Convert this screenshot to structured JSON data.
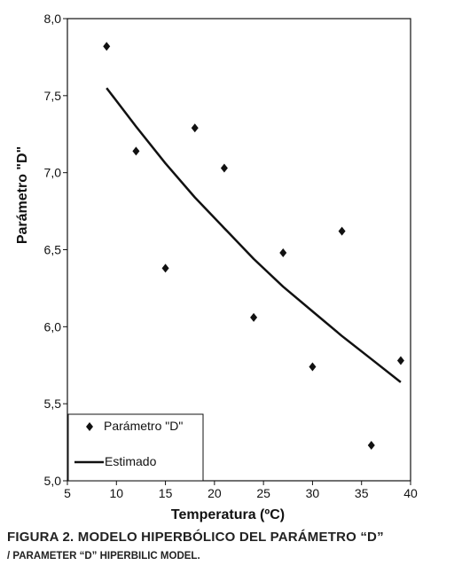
{
  "chart_data": {
    "type": "scatter",
    "xlabel": "Temperatura (ºC)",
    "ylabel": "Parámetro \"D\"",
    "xlim": [
      5,
      40
    ],
    "ylim": [
      5.0,
      8.0
    ],
    "xticks": [
      "5",
      "10",
      "15",
      "20",
      "25",
      "30",
      "35",
      "40"
    ],
    "xtick_values": [
      5,
      10,
      15,
      20,
      25,
      30,
      35,
      40
    ],
    "yticks": [
      "5,0",
      "5,5",
      "6,0",
      "6,5",
      "7,0",
      "7,5",
      "8,0"
    ],
    "ytick_values": [
      5.0,
      5.5,
      6.0,
      6.5,
      7.0,
      7.5,
      8.0
    ],
    "grid": false,
    "legend_position": "bottom-left",
    "series": [
      {
        "name": "Parámetro \"D\"",
        "kind": "markers",
        "marker": "diamond",
        "x": [
          9,
          12,
          15,
          18,
          21,
          24,
          27,
          30,
          33,
          36,
          39
        ],
        "y": [
          7.82,
          7.14,
          6.38,
          7.29,
          7.03,
          6.06,
          6.48,
          5.74,
          6.62,
          5.23,
          5.78
        ]
      },
      {
        "name": "Estimado",
        "kind": "line",
        "x": [
          9,
          12,
          15,
          18,
          21,
          24,
          27,
          30,
          33,
          36,
          39
        ],
        "y": [
          7.55,
          7.3,
          7.06,
          6.84,
          6.64,
          6.44,
          6.26,
          6.1,
          5.94,
          5.79,
          5.64
        ]
      }
    ],
    "colors": {
      "marker": "#111111",
      "line": "#111111",
      "axis": "#111111"
    }
  },
  "caption": {
    "line1": "FIGURA 2. MODELO HIPERBÓLICO DEL PARÁMETRO “D”",
    "line2": "/ PARAMETER “D” HIPERBILIC MODEL."
  }
}
